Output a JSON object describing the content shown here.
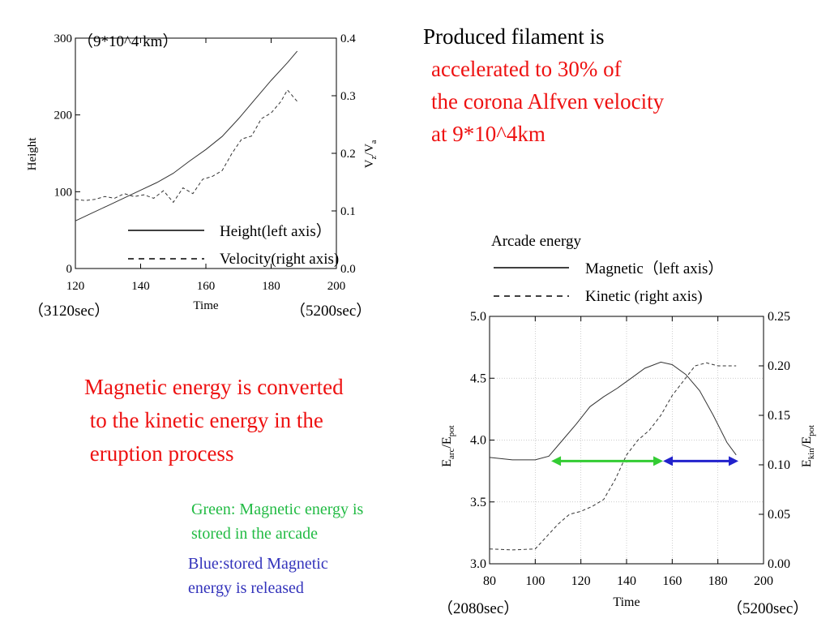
{
  "slide": {
    "title_line1": "Produced filament is",
    "title_red": [
      "accelerated to 30% of",
      "the corona Alfven velocity",
      "at 9*10^4km"
    ],
    "middle_red": [
      "Magnetic energy is converted",
      " to the kinetic energy in the",
      " eruption process"
    ],
    "green_note": [
      "Green: Magnetic energy is",
      "stored in the arcade"
    ],
    "blue_note": [
      "Blue:stored Magnetic",
      "energy is released"
    ],
    "colors": {
      "red": "#ee1111",
      "green": "#22bb44",
      "blue": "#3333bb",
      "arrow_green": "#33cc33",
      "arrow_blue": "#2222cc"
    }
  },
  "chart_data": [
    {
      "type": "line",
      "annotation_top": "（9*10^4 km）",
      "xlabel": "Time",
      "ylabel_left": "Height",
      "ylabel_right": "Vz/Va",
      "xlim": [
        120,
        200
      ],
      "ylim_left": [
        0,
        300
      ],
      "ylim_right": [
        0.0,
        0.4
      ],
      "x_ticks": [
        "120",
        "140",
        "160",
        "180",
        "200"
      ],
      "y_ticks_left": [
        "0",
        "100",
        "200",
        "300"
      ],
      "y_ticks_right": [
        "0.0",
        "0.1",
        "0.2",
        "0.3",
        "0.4"
      ],
      "x_note_left": "（3120sec）",
      "x_note_right": "（5200sec）",
      "legend": [
        "Height(left axis）",
        "Velocity(right axis)"
      ],
      "series": [
        {
          "name": "Height(left axis）",
          "axis": "left",
          "style": "solid",
          "x": [
            120,
            125,
            130,
            135,
            140,
            145,
            150,
            155,
            160,
            165,
            170,
            175,
            180,
            185,
            188
          ],
          "y": [
            62,
            72,
            82,
            92,
            102,
            112,
            124,
            140,
            155,
            172,
            195,
            220,
            245,
            268,
            283
          ]
        },
        {
          "name": "Velocity(right axis)",
          "axis": "right",
          "style": "dashed",
          "x": [
            120,
            123,
            126,
            129,
            132,
            135,
            138,
            141,
            144,
            147,
            150,
            153,
            156,
            159,
            162,
            165,
            168,
            171,
            174,
            177,
            180,
            183,
            185,
            188
          ],
          "y": [
            0.12,
            0.118,
            0.12,
            0.125,
            0.122,
            0.13,
            0.125,
            0.128,
            0.122,
            0.135,
            0.115,
            0.14,
            0.13,
            0.155,
            0.16,
            0.17,
            0.2,
            0.225,
            0.23,
            0.26,
            0.27,
            0.29,
            0.31,
            0.29
          ]
        }
      ]
    },
    {
      "type": "line",
      "legend_title": "Arcade energy",
      "xlabel": "Time",
      "ylabel_left": "Earc/Epot",
      "ylabel_right": "Ekin/Epot",
      "xlim": [
        80,
        200
      ],
      "ylim_left": [
        3.0,
        5.0
      ],
      "ylim_right": [
        0.0,
        0.25
      ],
      "x_ticks": [
        "80",
        "100",
        "120",
        "140",
        "160",
        "180",
        "200"
      ],
      "y_ticks_left": [
        "3.0",
        "3.5",
        "4.0",
        "4.5",
        "5.0"
      ],
      "y_ticks_right": [
        "0.00",
        "0.05",
        "0.10",
        "0.15",
        "0.20",
        "0.25"
      ],
      "x_note_left": "（2080sec）",
      "x_note_right": "（5200sec）",
      "legend": [
        "Magnetic（left axis）",
        "Kinetic (right axis)"
      ],
      "grid": true,
      "series": [
        {
          "name": "Magnetic（left axis）",
          "axis": "left",
          "style": "solid",
          "x": [
            80,
            90,
            100,
            106,
            112,
            118,
            124,
            130,
            136,
            142,
            148,
            155,
            160,
            166,
            172,
            178,
            184,
            188
          ],
          "y": [
            3.86,
            3.84,
            3.84,
            3.87,
            4.0,
            4.13,
            4.27,
            4.35,
            4.42,
            4.5,
            4.58,
            4.63,
            4.61,
            4.53,
            4.4,
            4.2,
            3.98,
            3.88
          ]
        },
        {
          "name": "Kinetic (right axis)",
          "axis": "right",
          "style": "dashed",
          "x": [
            80,
            90,
            100,
            106,
            110,
            115,
            120,
            125,
            130,
            135,
            140,
            145,
            150,
            155,
            160,
            165,
            170,
            175,
            180,
            188
          ],
          "y": [
            0.015,
            0.014,
            0.015,
            0.03,
            0.04,
            0.05,
            0.053,
            0.058,
            0.065,
            0.085,
            0.11,
            0.125,
            0.135,
            0.15,
            0.17,
            0.185,
            0.2,
            0.203,
            0.2,
            0.2
          ]
        }
      ],
      "arrows": [
        {
          "color": "green",
          "from": 107,
          "to": 156,
          "level": 3.83
        },
        {
          "color": "blue",
          "from": 156,
          "to": 189,
          "level": 3.83
        }
      ]
    }
  ]
}
